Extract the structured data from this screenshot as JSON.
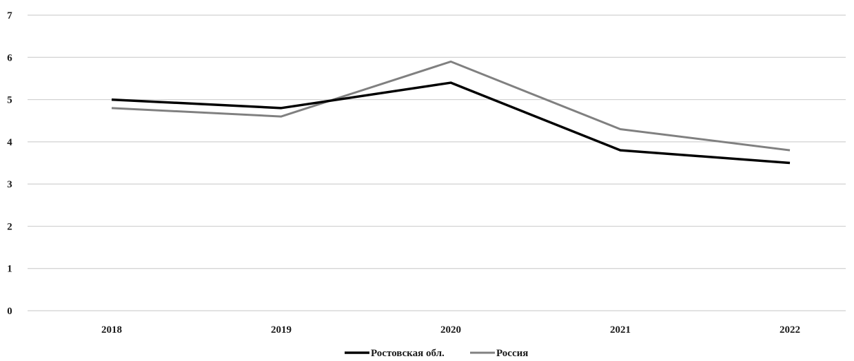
{
  "chart_data": {
    "type": "line",
    "x": [
      "2018",
      "2019",
      "2020",
      "2021",
      "2022"
    ],
    "y_ticks": [
      "0",
      "1",
      "2",
      "3",
      "4",
      "5",
      "6",
      "7"
    ],
    "ylim": [
      0,
      7
    ],
    "grid": true,
    "legend_position": "bottom-center",
    "series": [
      {
        "name": "Ростовская обл.",
        "color": "#000000",
        "values": [
          5.0,
          4.8,
          5.4,
          3.8,
          3.5
        ]
      },
      {
        "name": "Россия",
        "color": "#808080",
        "values": [
          4.8,
          4.6,
          5.9,
          4.3,
          3.8
        ]
      }
    ],
    "colors": {
      "grid": "#d0d0d0",
      "text": "#1a1a1a"
    }
  }
}
